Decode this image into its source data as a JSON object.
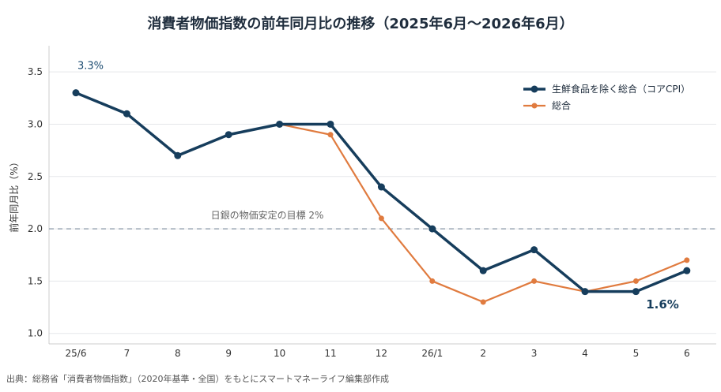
{
  "title": "消費者物価指数の前年同月比の推移（2025年6月〜2026年6月）",
  "source": "出典：総務省「消費者物価指数」（2020年基準・全国）をもとにスマートマネーライフ編集部作成",
  "colors": {
    "core": "#163d5c",
    "total": "#e07b3f",
    "reference": "#9aa7b4",
    "grid": "#e5e7ea"
  },
  "chart_data": {
    "type": "line",
    "title": "消費者物価指数の前年同月比の推移（2025年6月〜2026年6月）",
    "ylabel": "前年同月比（%）",
    "xlabel": "",
    "categories": [
      "25/6",
      "7",
      "8",
      "9",
      "10",
      "11",
      "12",
      "26/1",
      "2",
      "3",
      "4",
      "5",
      "6"
    ],
    "yticks": [
      "1.0",
      "1.5",
      "2.0",
      "2.5",
      "3.0",
      "3.5"
    ],
    "ylim": [
      0.9,
      3.75
    ],
    "grid": true,
    "legend_position": "top-right",
    "series": [
      {
        "name": "生鮮食品を除く総合（コアCPI）",
        "values": [
          3.3,
          3.1,
          2.7,
          2.9,
          3.0,
          3.0,
          2.4,
          2.0,
          1.6,
          1.8,
          1.4,
          1.4,
          1.6
        ]
      },
      {
        "name": "総合",
        "values": [
          3.3,
          3.1,
          2.7,
          2.9,
          3.0,
          2.9,
          2.1,
          1.5,
          1.3,
          1.5,
          1.4,
          1.5,
          1.7
        ]
      }
    ],
    "reference_line": {
      "value": 2.0,
      "label": "日銀の物価安定の目標 2%"
    },
    "annotations": [
      {
        "text": "3.3%",
        "category": "25/6",
        "value": 3.3
      },
      {
        "text": "1.6%",
        "category": "6",
        "value": 1.6
      }
    ]
  }
}
